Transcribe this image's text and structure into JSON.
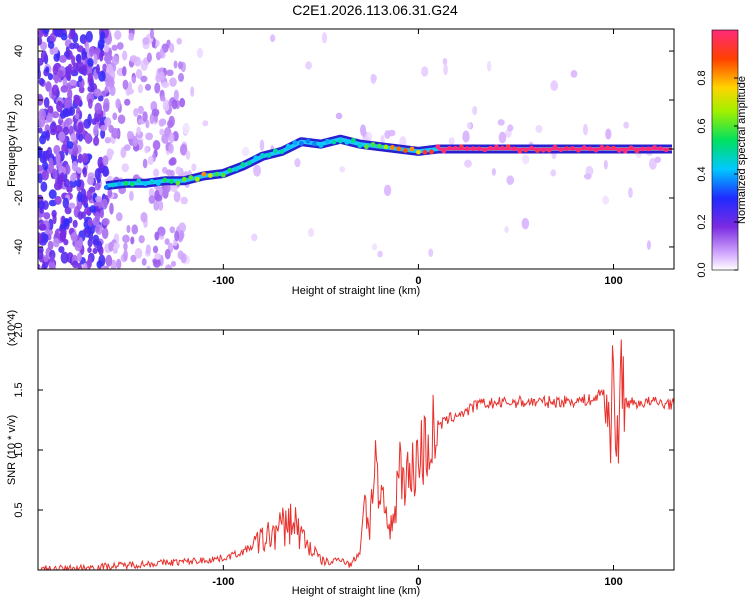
{
  "chart_data": [
    {
      "type": "heatmap",
      "title": "C2E1.2026.113.06.31.G24",
      "xlabel": "Height of straight line (km)",
      "ylabel": "Frequency (Hz)",
      "xlim": [
        -195,
        131
      ],
      "ylim": [
        -49,
        49
      ],
      "xticks": [
        -100,
        0,
        100
      ],
      "yticks": [
        -40,
        -20,
        0,
        20,
        40
      ],
      "colorbar": {
        "label": "Normalized spectral amplitude",
        "ticks": [
          "0.0",
          "0.2",
          "0.4",
          "0.6",
          "0.8"
        ],
        "range": [
          0,
          1
        ]
      },
      "signal_track": [
        {
          "x": -160,
          "y": -15,
          "amp": 0.35
        },
        {
          "x": -150,
          "y": -14,
          "amp": 0.5
        },
        {
          "x": -140,
          "y": -14,
          "amp": 0.45
        },
        {
          "x": -130,
          "y": -13,
          "amp": 0.5
        },
        {
          "x": -120,
          "y": -13,
          "amp": 0.55
        },
        {
          "x": -110,
          "y": -11,
          "amp": 0.75
        },
        {
          "x": -100,
          "y": -10,
          "amp": 0.55
        },
        {
          "x": -90,
          "y": -7,
          "amp": 0.5
        },
        {
          "x": -80,
          "y": -3,
          "amp": 0.45
        },
        {
          "x": -70,
          "y": -1,
          "amp": 0.45
        },
        {
          "x": -60,
          "y": 3,
          "amp": 0.4
        },
        {
          "x": -50,
          "y": 2,
          "amp": 0.4
        },
        {
          "x": -40,
          "y": 4,
          "amp": 0.45
        },
        {
          "x": -30,
          "y": 2,
          "amp": 0.5
        },
        {
          "x": -20,
          "y": 1,
          "amp": 0.6
        },
        {
          "x": -10,
          "y": 0,
          "amp": 0.85
        },
        {
          "x": 0,
          "y": -1,
          "amp": 0.8
        },
        {
          "x": 10,
          "y": 0,
          "amp": 1.0
        },
        {
          "x": 130,
          "y": 0,
          "amp": 1.0
        }
      ]
    },
    {
      "type": "line",
      "xlabel": "Height of straight line (km)",
      "ylabel": "SNR (10 * v/v)",
      "y_multiplier": "(x10^4)",
      "xlim": [
        -195,
        131
      ],
      "ylim": [
        0,
        2.0
      ],
      "xticks": [
        -100,
        0,
        100
      ],
      "yticks": [
        "0.5",
        "1.0",
        "1.5",
        "2.0"
      ],
      "series": [
        {
          "color": "#e8302c",
          "x": [
            -195,
            -180,
            -170,
            -160,
            -150,
            -140,
            -130,
            -120,
            -110,
            -100,
            -90,
            -80,
            -70,
            -64,
            -60,
            -55,
            -50,
            -45,
            -40,
            -35,
            -30,
            -28,
            -25,
            -22,
            -20,
            -18,
            -15,
            -12,
            -10,
            -5,
            0,
            5,
            10,
            15,
            20,
            25,
            30,
            40,
            50,
            60,
            70,
            80,
            90,
            95,
            98,
            100,
            102,
            104,
            106,
            110,
            120,
            131
          ],
          "y": [
            0.01,
            0.01,
            0.02,
            0.03,
            0.04,
            0.05,
            0.06,
            0.07,
            0.08,
            0.1,
            0.15,
            0.25,
            0.35,
            0.42,
            0.28,
            0.18,
            0.08,
            0.06,
            0.1,
            0.04,
            0.15,
            0.6,
            0.35,
            1.0,
            0.45,
            0.6,
            0.3,
            0.5,
            0.9,
            0.75,
            0.95,
            1.05,
            1.2,
            1.25,
            1.3,
            1.32,
            1.38,
            1.39,
            1.4,
            1.4,
            1.4,
            1.41,
            1.42,
            1.5,
            1.1,
            1.8,
            0.9,
            1.7,
            1.4,
            1.39,
            1.4,
            1.38
          ]
        }
      ]
    }
  ]
}
